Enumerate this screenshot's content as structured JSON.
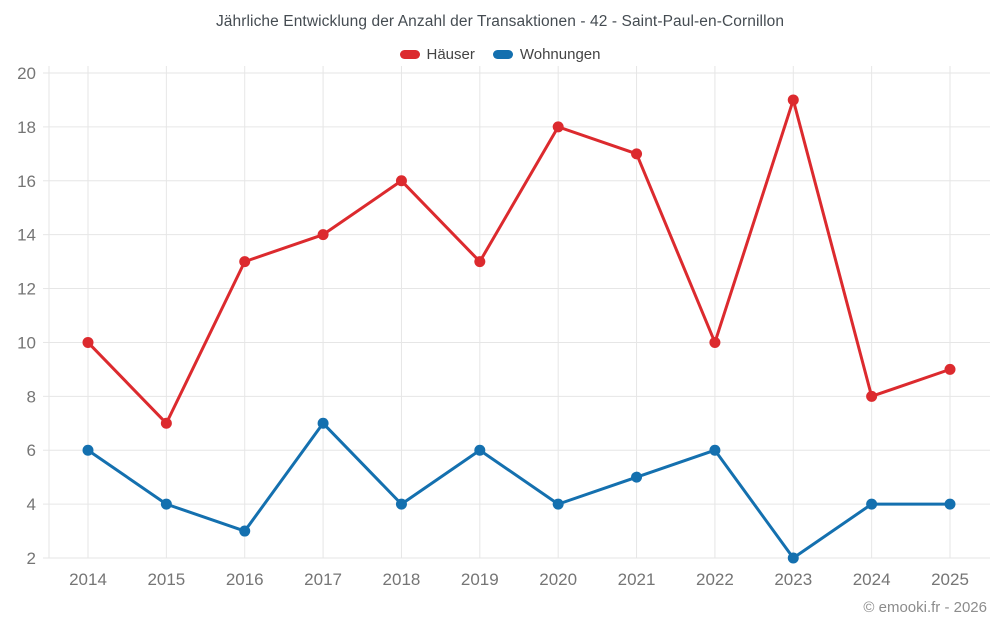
{
  "title": "Jährliche Entwicklung der Anzahl der Transaktionen - 42 - Saint-Paul-en-Cornillon",
  "watermark": "© emooki.fr - 2026",
  "colors": {
    "haeuser_red": "#dc2a2e",
    "wohnungen_blue": "#1470af",
    "grid": "#e6e6e6",
    "axis_label": "#757575",
    "title_text": "#454c52"
  },
  "chart_data": {
    "type": "line",
    "title": "Jährliche Entwicklung der Anzahl der Transaktionen - 42 - Saint-Paul-en-Cornillon",
    "categories": [
      "2014",
      "2015",
      "2016",
      "2017",
      "2018",
      "2019",
      "2020",
      "2021",
      "2022",
      "2023",
      "2024",
      "2025"
    ],
    "series": [
      {
        "name": "Häuser",
        "color": "#dc2a2e",
        "values": [
          10,
          7,
          13,
          14,
          16,
          13,
          18,
          17,
          10,
          19,
          8,
          9
        ]
      },
      {
        "name": "Wohnungen",
        "color": "#1470af",
        "values": [
          6,
          4,
          3,
          7,
          4,
          6,
          4,
          5,
          6,
          2,
          4,
          4
        ]
      }
    ],
    "xlabel": "",
    "ylabel": "",
    "ylim": [
      2,
      20
    ],
    "ytick_step": 2,
    "yticks": [
      2,
      4,
      6,
      8,
      10,
      12,
      14,
      16,
      18,
      20
    ],
    "grid": true,
    "legend_position": "top"
  }
}
